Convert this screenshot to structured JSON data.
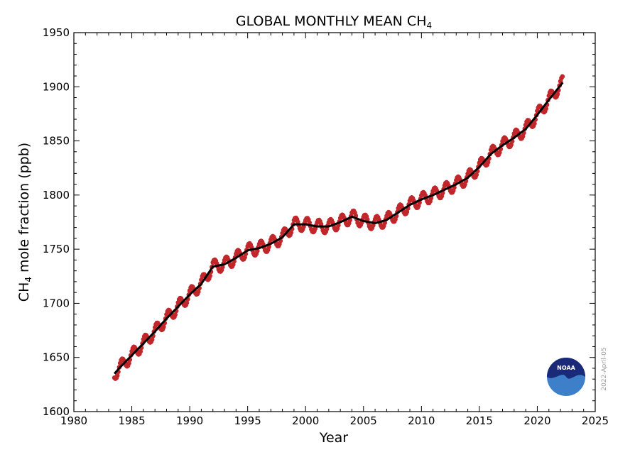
{
  "chart_data": {
    "type": "line",
    "title": "GLOBAL MONTHLY MEAN CH",
    "title_subscript": "4",
    "xlabel": "Year",
    "ylabel_prefix": "CH",
    "ylabel_subscript": "4",
    "ylabel_suffix": " mole fraction (ppb)",
    "xlim": [
      1980,
      2025
    ],
    "ylim": [
      1600,
      1950
    ],
    "x_ticks": [
      1980,
      1985,
      1990,
      1995,
      2000,
      2005,
      2010,
      2015,
      2020,
      2025
    ],
    "y_ticks": [
      1600,
      1650,
      1700,
      1750,
      1800,
      1850,
      1900,
      1950
    ],
    "grid": false,
    "series": [
      {
        "style": "dots",
        "color": "#c0262a",
        "seasonal_amplitude": 6,
        "x_start": 1983.5,
        "x_end": 2022.2
      },
      {
        "style": "line",
        "color": "#000000",
        "x": [
          1983.5,
          1984,
          1985,
          1986,
          1987,
          1988,
          1989,
          1990,
          1991,
          1992,
          1993,
          1994,
          1995,
          1996,
          1997,
          1998,
          1999,
          2000,
          2001,
          2002,
          2003,
          2004,
          2005,
          2006,
          2007,
          2008,
          2009,
          2010,
          2011,
          2012,
          2013,
          2014,
          2015,
          2016,
          2017,
          2018,
          2019,
          2020,
          2021,
          2022.2
        ],
        "y": [
          1635,
          1641,
          1652,
          1663,
          1674,
          1686,
          1697,
          1708,
          1718,
          1734,
          1736,
          1742,
          1749,
          1751,
          1755,
          1761,
          1773,
          1773,
          1771,
          1771,
          1775,
          1780,
          1776,
          1774,
          1777,
          1784,
          1791,
          1796,
          1800,
          1805,
          1810,
          1816,
          1826,
          1838,
          1846,
          1853,
          1861,
          1874,
          1888,
          1904
        ]
      }
    ],
    "annotations": {
      "logo_text": "NOAA",
      "date_stamp": "2022-April-05"
    }
  }
}
